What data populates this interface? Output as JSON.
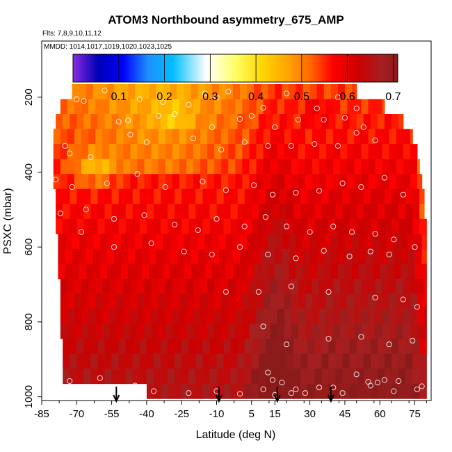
{
  "chart_data": {
    "type": "heatmap",
    "title": "ATOM3 Northbound asymmetry_675_AMP",
    "subtitle_flights": "Flts: 7,8,9,10,11,12",
    "subtitle_dates": "MMDD: 1014,1017,1019,1020,1023,1025",
    "xlabel": "Latitude (deg N)",
    "ylabel": "PSXC (mbar)",
    "xlim": [
      -85,
      82
    ],
    "ylim": [
      1010,
      50
    ],
    "x_ticks": [
      -85,
      -70,
      -55,
      -40,
      -25,
      -10,
      5,
      15,
      30,
      45,
      60,
      75
    ],
    "x_tick_labels": [
      "-85",
      "-70",
      "-55",
      "-40",
      "-25",
      "-10",
      "5",
      "15",
      "30",
      "45",
      "60",
      "75"
    ],
    "y_ticks": [
      200,
      400,
      600,
      800,
      1000
    ],
    "y_tick_labels": [
      "200",
      "400",
      "600",
      "800",
      "1000"
    ],
    "colorbar": {
      "range": [
        0.0,
        0.71
      ],
      "ticks": [
        0.1,
        0.2,
        0.3,
        0.4,
        0.5,
        0.6,
        0.7
      ],
      "tick_labels": [
        "0.1",
        "0.2",
        "0.3",
        "0.4",
        "0.5",
        "0.6",
        "0.7"
      ],
      "colors": [
        "#8a2be2",
        "#0000b4",
        "#0000ff",
        "#1e90ff",
        "#00bfff",
        "#ffffff",
        "#ffff66",
        "#ffd700",
        "#ffa500",
        "#ff6a00",
        "#ff0000",
        "#cc0000",
        "#a52020",
        "#8b1a1a"
      ]
    },
    "layers": [
      {
        "p": 185,
        "lat0": -72,
        "lat1": 50
      },
      {
        "p": 225,
        "lat0": -77,
        "lat1": 62
      },
      {
        "p": 265,
        "lat0": -79,
        "lat1": 70
      },
      {
        "p": 305,
        "lat0": -80,
        "lat1": 74
      },
      {
        "p": 345,
        "lat0": -80,
        "lat1": 76
      },
      {
        "p": 385,
        "lat0": -80,
        "lat1": 77
      },
      {
        "p": 425,
        "lat0": -80,
        "lat1": 78
      },
      {
        "p": 465,
        "lat0": -79,
        "lat1": 79
      },
      {
        "p": 505,
        "lat0": -79,
        "lat1": 79
      },
      {
        "p": 545,
        "lat0": -79,
        "lat1": 80
      },
      {
        "p": 585,
        "lat0": -78,
        "lat1": 80
      },
      {
        "p": 625,
        "lat0": -78,
        "lat1": 80
      },
      {
        "p": 665,
        "lat0": -78,
        "lat1": 80
      },
      {
        "p": 705,
        "lat0": -77,
        "lat1": 80
      },
      {
        "p": 745,
        "lat0": -77,
        "lat1": 80
      },
      {
        "p": 785,
        "lat0": -77,
        "lat1": 80
      },
      {
        "p": 825,
        "lat0": -77,
        "lat1": 80
      },
      {
        "p": 865,
        "lat0": -76,
        "lat1": 80
      },
      {
        "p": 905,
        "lat0": -76,
        "lat1": 80
      },
      {
        "p": 945,
        "lat0": -76,
        "lat1": 80
      },
      {
        "p": 985,
        "lat0": -40,
        "lat1": 80
      }
    ],
    "surface_arrows_lat": [
      -53,
      -9,
      16,
      39
    ],
    "sample_points": [
      [
        -58,
        182
      ],
      [
        -43,
        205
      ],
      [
        -33,
        213
      ],
      [
        -22,
        220
      ],
      [
        -15,
        190
      ],
      [
        -10,
        200
      ],
      [
        -5,
        185
      ],
      [
        10,
        228
      ],
      [
        20,
        190
      ],
      [
        33,
        230
      ],
      [
        42,
        200
      ],
      [
        50,
        230
      ],
      [
        -70,
        205
      ],
      [
        -67,
        210
      ],
      [
        -52,
        265
      ],
      [
        -48,
        262
      ],
      [
        -35,
        250
      ],
      [
        -28,
        245
      ],
      [
        -12,
        280
      ],
      [
        0,
        258
      ],
      [
        5,
        250
      ],
      [
        15,
        280
      ],
      [
        25,
        260
      ],
      [
        36,
        260
      ],
      [
        45,
        255
      ],
      [
        53,
        280
      ],
      [
        -75,
        330
      ],
      [
        -73,
        350
      ],
      [
        -64,
        360
      ],
      [
        -47,
        300
      ],
      [
        -40,
        320
      ],
      [
        -20,
        310
      ],
      [
        -8,
        340
      ],
      [
        2,
        320
      ],
      [
        12,
        330
      ],
      [
        22,
        330
      ],
      [
        32,
        325
      ],
      [
        42,
        330
      ],
      [
        50,
        295
      ],
      [
        58,
        315
      ],
      [
        -79,
        420
      ],
      [
        -72,
        440
      ],
      [
        -57,
        430
      ],
      [
        -44,
        405
      ],
      [
        -32,
        440
      ],
      [
        -16,
        425
      ],
      [
        -6,
        448
      ],
      [
        6,
        435
      ],
      [
        14,
        460
      ],
      [
        24,
        455
      ],
      [
        34,
        450
      ],
      [
        44,
        430
      ],
      [
        52,
        440
      ],
      [
        62,
        415
      ],
      [
        70,
        460
      ],
      [
        -77,
        510
      ],
      [
        -66,
        500
      ],
      [
        -54,
        525
      ],
      [
        -41,
        515
      ],
      [
        -28,
        540
      ],
      [
        -18,
        555
      ],
      [
        -10,
        525
      ],
      [
        2,
        545
      ],
      [
        11,
        520
      ],
      [
        20,
        545
      ],
      [
        30,
        560
      ],
      [
        40,
        545
      ],
      [
        48,
        560
      ],
      [
        58,
        565
      ],
      [
        66,
        580
      ],
      [
        75,
        600
      ],
      [
        -68,
        560
      ],
      [
        -54,
        600
      ],
      [
        -38,
        590
      ],
      [
        -24,
        612
      ],
      [
        -12,
        620
      ],
      [
        0,
        600
      ],
      [
        12,
        620
      ],
      [
        24,
        630
      ],
      [
        36,
        610
      ],
      [
        47,
        625
      ],
      [
        56,
        612
      ],
      [
        64,
        620
      ],
      [
        -6,
        720
      ],
      [
        8,
        720
      ],
      [
        22,
        705
      ],
      [
        38,
        720
      ],
      [
        58,
        735
      ],
      [
        70,
        740
      ],
      [
        76,
        760
      ],
      [
        10,
        812
      ],
      [
        20,
        860
      ],
      [
        38,
        845
      ],
      [
        52,
        840
      ],
      [
        64,
        860
      ],
      [
        74,
        850
      ],
      [
        12,
        935
      ],
      [
        14,
        955
      ],
      [
        18,
        962
      ],
      [
        24,
        980
      ],
      [
        28,
        990
      ],
      [
        40,
        975
      ],
      [
        50,
        940
      ],
      [
        55,
        960
      ],
      [
        59,
        962
      ],
      [
        62,
        955
      ],
      [
        68,
        958
      ],
      [
        76,
        980
      ],
      [
        -73,
        958
      ],
      [
        -60,
        950
      ],
      [
        -45,
        970
      ],
      [
        -37,
        985
      ],
      [
        -22,
        990
      ],
      [
        -10,
        985
      ],
      [
        0,
        992
      ],
      [
        10,
        980
      ],
      [
        15,
        995
      ],
      [
        22,
        990
      ],
      [
        34,
        975
      ],
      [
        44,
        990
      ],
      [
        56,
        970
      ],
      [
        66,
        985
      ],
      [
        78,
        972
      ]
    ]
  }
}
